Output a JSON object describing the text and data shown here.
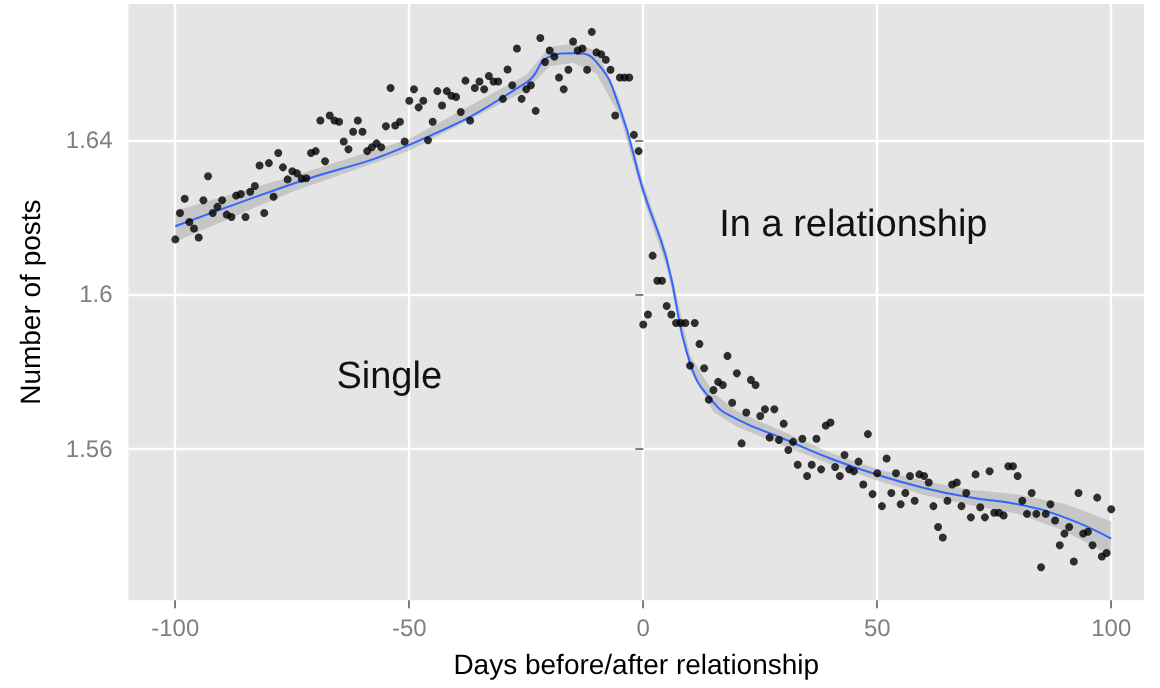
{
  "chart_data": {
    "type": "scatter",
    "xlabel": "Days before/after relationship",
    "ylabel": "Number of posts",
    "annotations": [
      "Single",
      "In a relationship"
    ],
    "xlim": [
      -110,
      107
    ],
    "xticks": [
      -100,
      -50,
      0,
      50,
      100
    ],
    "ylim": [
      1.521,
      1.675
    ],
    "yticks": [
      1.56,
      1.6,
      1.64
    ],
    "grid": true,
    "series": [
      {
        "marker": "circle",
        "color": "#000000",
        "x": [
          -100,
          -99,
          -98,
          -97,
          -96,
          -95,
          -94,
          -93,
          -92,
          -91,
          -90,
          -89,
          -88,
          -87,
          -86,
          -85,
          -84,
          -83,
          -82,
          -81,
          -80,
          -79,
          -78,
          -77,
          -76,
          -75,
          -74,
          -73,
          -72,
          -71,
          -70,
          -69,
          -68,
          -67,
          -66,
          -65,
          -64,
          -63,
          -62,
          -61,
          -60,
          -59,
          -58,
          -57,
          -56,
          -55,
          -54,
          -53,
          -52,
          -51,
          -50,
          -49,
          -48,
          -47,
          -46,
          -45,
          -44,
          -43,
          -42,
          -41,
          -40,
          -39,
          -38,
          -37,
          -36,
          -35,
          -34,
          -33,
          -32,
          -31,
          -30,
          -29,
          -28,
          -27,
          -26,
          -25,
          -24,
          -23,
          -22,
          -21,
          -20,
          -19,
          -18,
          -17,
          -16,
          -15,
          -14,
          -13,
          -12,
          -11,
          -10,
          -9,
          -8,
          -7,
          -6,
          -5,
          -4,
          -3,
          -2,
          -1,
          0,
          1,
          2,
          3,
          4,
          5,
          6,
          7,
          8,
          9,
          10,
          11,
          12,
          13,
          14,
          15,
          16,
          17,
          18,
          19,
          20,
          21,
          22,
          23,
          24,
          25,
          26,
          27,
          28,
          29,
          30,
          31,
          32,
          33,
          34,
          35,
          36,
          37,
          38,
          39,
          40,
          41,
          42,
          43,
          44,
          45,
          46,
          47,
          48,
          49,
          50,
          51,
          52,
          53,
          54,
          55,
          56,
          57,
          58,
          59,
          60,
          61,
          62,
          63,
          64,
          65,
          66,
          67,
          68,
          69,
          70,
          71,
          72,
          73,
          74,
          75,
          76,
          77,
          78,
          79,
          80,
          81,
          82,
          83,
          84,
          85,
          86,
          87,
          88,
          89,
          90,
          91,
          92,
          93,
          94,
          95,
          96,
          97,
          98,
          99,
          100
        ],
        "values": [
          1.6142,
          1.621,
          1.6247,
          1.6187,
          1.617,
          1.6147,
          1.6243,
          1.6305,
          1.621,
          1.6226,
          1.6243,
          1.6206,
          1.62,
          1.6255,
          1.6259,
          1.62,
          1.6265,
          1.628,
          1.6333,
          1.621,
          1.6339,
          1.6252,
          1.6365,
          1.6328,
          1.6297,
          1.6318,
          1.6313,
          1.6299,
          1.63,
          1.6365,
          1.637,
          1.6449,
          1.6344,
          1.6462,
          1.6449,
          1.6446,
          1.6395,
          1.6375,
          1.642,
          1.6449,
          1.642,
          1.637,
          1.638,
          1.639,
          1.638,
          1.6434,
          1.6533,
          1.6436,
          1.6446,
          1.6395,
          1.65,
          1.653,
          1.6483,
          1.65,
          1.6398,
          1.6446,
          1.6525,
          1.6488,
          1.6525,
          1.6513,
          1.651,
          1.6471,
          1.6552,
          1.6449,
          1.6533,
          1.655,
          1.653,
          1.6564,
          1.655,
          1.655,
          1.6505,
          1.6581,
          1.654,
          1.6635,
          1.6505,
          1.653,
          1.654,
          1.6474,
          1.6662,
          1.66,
          1.663,
          1.6614,
          1.656,
          1.653,
          1.658,
          1.6653,
          1.663,
          1.6635,
          1.658,
          1.6678,
          1.6625,
          1.662,
          1.6606,
          1.658,
          1.6462,
          1.656,
          1.656,
          1.656,
          1.6412,
          1.637,
          1.5922,
          1.5948,
          1.61,
          1.6035,
          1.6035,
          1.597,
          1.5948,
          1.5926,
          1.5926,
          1.5926,
          1.5816,
          1.5926,
          1.5872,
          1.5809,
          1.5728,
          1.5753,
          1.5774,
          1.5766,
          1.5841,
          1.572,
          1.5796,
          1.5615,
          1.5695,
          1.5779,
          1.5766,
          1.5686,
          1.5703,
          1.563,
          1.5703,
          1.5624,
          1.5666,
          1.5598,
          1.5619,
          1.556,
          1.5627,
          1.5531,
          1.556,
          1.5627,
          1.5548,
          1.5661,
          1.5669,
          1.5554,
          1.5531,
          1.5585,
          1.5548,
          1.5543,
          1.5568,
          1.5509,
          1.5639,
          1.5484,
          1.5538,
          1.5453,
          1.5576,
          1.5487,
          1.5538,
          1.5458,
          1.5487,
          1.5531,
          1.5467,
          1.5535,
          1.5531,
          1.5514,
          1.5453,
          1.5399,
          1.5372,
          1.5467,
          1.5509,
          1.5514,
          1.5453,
          1.5487,
          1.5424,
          1.5535,
          1.545,
          1.5424,
          1.5543,
          1.5436,
          1.5436,
          1.5429,
          1.5556,
          1.5556,
          1.5531,
          1.5467,
          1.5433,
          1.5487,
          1.5433,
          1.5295,
          1.5433,
          1.5458,
          1.5416,
          1.5352,
          1.5382,
          1.5399,
          1.531,
          1.5487,
          1.5382,
          1.5387,
          1.5352,
          1.5475,
          1.5323,
          1.5332,
          1.5445
        ]
      },
      {
        "type": "line",
        "marker": "none",
        "color": "#3366ff",
        "x": [
          -100,
          -75,
          -50,
          -25,
          -20,
          -15,
          -10,
          -5,
          0,
          5,
          10,
          15,
          20,
          30,
          40,
          50,
          60,
          70,
          80,
          90,
          100
        ],
        "values": [
          1.6176,
          1.6285,
          1.6386,
          1.6547,
          1.6614,
          1.6623,
          1.66,
          1.648,
          1.6268,
          1.609,
          1.5823,
          1.5721,
          1.5678,
          1.5627,
          1.5576,
          1.5534,
          1.55,
          1.5475,
          1.5458,
          1.5424,
          1.5369
        ],
        "lower": [
          1.6136,
          1.6265,
          1.6371,
          1.6527,
          1.6589,
          1.6598,
          1.657,
          1.646,
          1.6248,
          1.607,
          1.5803,
          1.5696,
          1.5658,
          1.5609,
          1.5561,
          1.5519,
          1.5482,
          1.5455,
          1.5433,
          1.5389,
          1.5324
        ],
        "upper": [
          1.6216,
          1.6305,
          1.6401,
          1.6567,
          1.6639,
          1.6648,
          1.663,
          1.65,
          1.6288,
          1.611,
          1.5843,
          1.5746,
          1.5698,
          1.5645,
          1.5591,
          1.5549,
          1.5518,
          1.5495,
          1.5483,
          1.5459,
          1.5414
        ]
      }
    ]
  }
}
